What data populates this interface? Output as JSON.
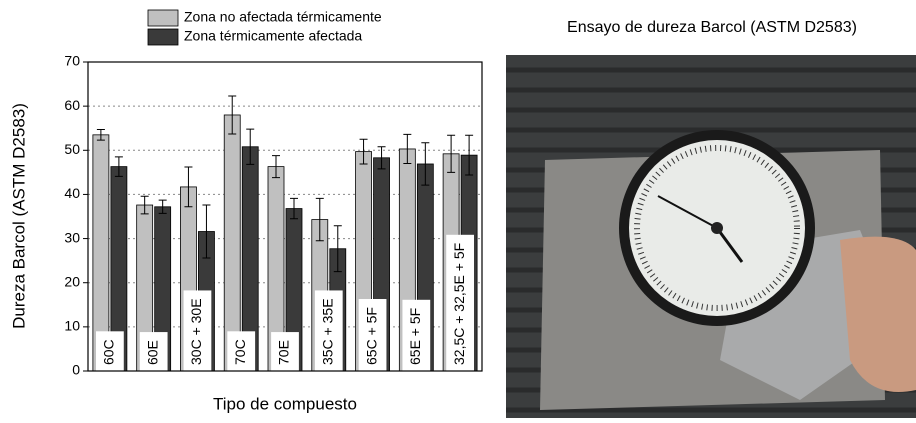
{
  "chart_data": {
    "type": "bar",
    "title": "Ensayo de dureza Barcol (ASTM D2583)",
    "x_label": "Tipo de compuesto",
    "y_label": "Dureza Barcol (ASTM D2583)",
    "categories": [
      "60C",
      "60E",
      "30C + 30E",
      "70C",
      "70E",
      "35C + 35E",
      "65C + 5F",
      "65E + 5F",
      "32,5C + 32,5E + 5F"
    ],
    "series": [
      {
        "name": "Zona no afectada térmicamente",
        "color": "#c0c0c0",
        "values": [
          53.5,
          37.6,
          41.7,
          58,
          46.3,
          34.3,
          49.7,
          50.3,
          49.2
        ],
        "errors": [
          1.2,
          2,
          4.5,
          4.3,
          2.5,
          4.8,
          2.8,
          3.3,
          4.2
        ]
      },
      {
        "name": "Zona térmicamente afectada",
        "color": "#3a3a3a",
        "values": [
          46.3,
          37.2,
          31.6,
          50.8,
          36.8,
          27.7,
          48.3,
          46.9,
          48.9
        ],
        "errors": [
          2.2,
          1.5,
          6,
          4,
          2.3,
          5.2,
          2.5,
          4.8,
          4.5
        ]
      }
    ],
    "ylim": [
      0,
      70
    ],
    "yticks": [
      0,
      10,
      20,
      30,
      40,
      50,
      60,
      70
    ],
    "grid": true
  }
}
